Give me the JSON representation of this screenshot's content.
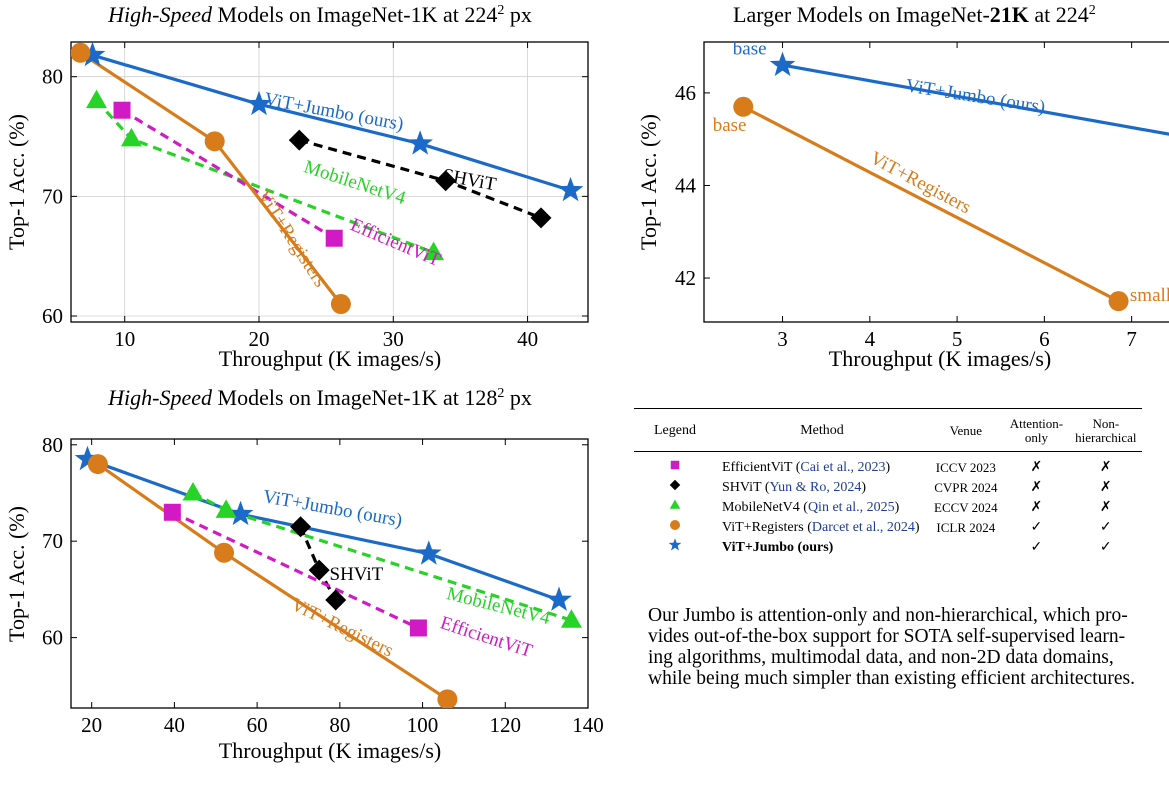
{
  "chart_data": [
    {
      "type": "line",
      "title_parts": [
        "High-Speed",
        " Models on ImageNet-1K at 224",
        "2",
        " px"
      ],
      "xlabel": "Throughput (K images/s)",
      "ylabel": "Top-1 Acc. (%)",
      "xlim": [
        6,
        44.5
      ],
      "ylim": [
        59.5,
        82.9
      ],
      "xticks": [
        10,
        20,
        30,
        40
      ],
      "yticks": [
        60,
        70,
        80
      ],
      "grid": true,
      "series": [
        {
          "name": "ViT+Jumbo (ours)",
          "color": "#1b6ac9",
          "marker": "star",
          "dash": false,
          "points": [
            [
              7.6,
              81.8
            ],
            [
              20.0,
              77.7
            ],
            [
              32.0,
              74.4
            ],
            [
              43.2,
              70.5
            ]
          ],
          "label": {
            "text": "ViT+Jumbo (ours)",
            "at": [
              25.5,
              76.6
            ],
            "angle": 10.5
          }
        },
        {
          "name": "SHViT",
          "color": "#000000",
          "marker": "diamond",
          "dash": true,
          "points": [
            [
              23.0,
              74.7
            ],
            [
              33.9,
              71.3
            ],
            [
              41.0,
              68.2
            ]
          ],
          "label": {
            "text": "SHViT",
            "at": [
              35.6,
              70.9
            ],
            "angle": 10.5
          }
        },
        {
          "name": "MobileNetV4",
          "color": "#27d327",
          "marker": "triangle",
          "dash": true,
          "points": [
            [
              7.9,
              78.0
            ],
            [
              10.5,
              74.8
            ],
            [
              33.0,
              65.3
            ]
          ],
          "label": {
            "text": "MobileNetV4",
            "at": [
              27.0,
              70.7
            ],
            "angle": 18
          }
        },
        {
          "name": "EfficientViT",
          "color": "#d119c5",
          "marker": "square",
          "dash": true,
          "points": [
            [
              9.8,
              77.2
            ],
            [
              25.6,
              66.5
            ]
          ],
          "label": {
            "text": "EfficientViT",
            "at": [
              30.0,
              65.7
            ],
            "angle": 23
          }
        },
        {
          "name": "ViT+Registers",
          "color": "#d87b1a",
          "marker": "circle",
          "dash": false,
          "points": [
            [
              6.7,
              82.0
            ],
            [
              16.7,
              74.6
            ],
            [
              26.1,
              61.0
            ]
          ],
          "label": {
            "text": "ViT+Registers",
            "at": [
              22.1,
              66.2
            ],
            "angle": 57
          }
        }
      ]
    },
    {
      "type": "line",
      "title_parts": [
        "Larger Models on ImageNet-",
        "21K",
        " at 224",
        "2"
      ],
      "xlabel": "Throughput (K images/s)",
      "ylabel": "Top-1 Acc. (%)",
      "xlim": [
        2.1,
        7.6
      ],
      "ylim": [
        41.05,
        47.1
      ],
      "xticks": [
        3,
        4,
        5,
        6,
        7
      ],
      "yticks": [
        42,
        44,
        46
      ],
      "grid": false,
      "series": [
        {
          "name": "ViT+Jumbo (ours)",
          "color": "#1b6ac9",
          "marker": "star",
          "dash": false,
          "points": [
            [
              3.0,
              46.6
            ],
            [
              7.75,
              45.0
            ]
          ],
          "label": {
            "text": "ViT+Jumbo (ours)",
            "at": [
              5.2,
              45.8
            ],
            "angle": 9
          }
        },
        {
          "name": "ViT+Registers",
          "color": "#d87b1a",
          "marker": "circle",
          "dash": false,
          "points": [
            [
              2.55,
              45.7
            ],
            [
              6.85,
              41.5
            ]
          ],
          "label": {
            "text": "ViT+Registers",
            "at": [
              4.55,
              43.95
            ],
            "angle": 28
          }
        }
      ],
      "point_labels": [
        {
          "text": "base",
          "color": "#1b6ac9",
          "at": [
            2.43,
            46.83
          ]
        },
        {
          "text": "base",
          "color": "#d87b1a",
          "at": [
            2.2,
            45.18
          ]
        },
        {
          "text": "small",
          "color": "#d87b1a",
          "at": [
            6.98,
            41.5
          ]
        }
      ]
    },
    {
      "type": "line",
      "title_parts": [
        "High-Speed",
        " Models on ImageNet-1K at 128",
        "2",
        " px"
      ],
      "xlabel": "Throughput (K images/s)",
      "ylabel": "Top-1 Acc. (%)",
      "xlim": [
        15,
        140
      ],
      "ylim": [
        52.7,
        80.6
      ],
      "xticks": [
        20,
        40,
        60,
        80,
        100,
        120,
        140
      ],
      "yticks": [
        60,
        70,
        80
      ],
      "grid": false,
      "series": [
        {
          "name": "ViT+Jumbo (ours)",
          "color": "#1b6ac9",
          "marker": "star",
          "dash": false,
          "points": [
            [
              19.0,
              78.5
            ],
            [
              56.0,
              72.8
            ],
            [
              101.5,
              68.7
            ],
            [
              133.0,
              63.9
            ]
          ],
          "label": {
            "text": "ViT+Jumbo (ours)",
            "at": [
              78.0,
              72.8
            ],
            "angle": 10
          }
        },
        {
          "name": "MobileNetV4",
          "color": "#27d327",
          "marker": "triangle",
          "dash": true,
          "points": [
            [
              44.5,
              75.0
            ],
            [
              52.5,
              73.2
            ],
            [
              136.0,
              61.8
            ]
          ],
          "label": {
            "text": "MobileNetV4",
            "at": [
              118.0,
              62.7
            ],
            "angle": 14
          }
        },
        {
          "name": "SHViT",
          "color": "#000000",
          "marker": "diamond",
          "dash": true,
          "points": [
            [
              70.5,
              71.5
            ],
            [
              75.0,
              67.0
            ],
            [
              79.0,
              63.9
            ]
          ],
          "label": {
            "text": "SHViT",
            "at": [
              84.0,
              66.0
            ],
            "angle": 0
          }
        },
        {
          "name": "EfficientViT",
          "color": "#d119c5",
          "marker": "square",
          "dash": true,
          "points": [
            [
              39.5,
              73.0
            ],
            [
              99.0,
              61.0
            ]
          ],
          "label": {
            "text": "EfficientViT",
            "at": [
              115.0,
              59.5
            ],
            "angle": 18
          }
        },
        {
          "name": "ViT+Registers",
          "color": "#d87b1a",
          "marker": "circle",
          "dash": false,
          "points": [
            [
              21.5,
              78.0
            ],
            [
              52.0,
              68.8
            ],
            [
              106.0,
              53.6
            ]
          ],
          "label": {
            "text": "ViT+Registers",
            "at": [
              80.0,
              60.5
            ],
            "angle": 26
          }
        }
      ]
    }
  ],
  "legend_table": {
    "headers": [
      "Legend",
      "Method",
      "Venue",
      "Attention-only",
      "Non-hierarchical"
    ],
    "rows": [
      {
        "symbol": "square",
        "color": "#d119c5",
        "method": "EfficientViT",
        "cite": "Cai et al., 2023",
        "venue": "ICCV 2023",
        "attention_only": "✗",
        "non_hier": "✗"
      },
      {
        "symbol": "diamond",
        "color": "#000000",
        "method": "SHViT",
        "cite": "Yun & Ro, 2024",
        "venue": "CVPR 2024",
        "attention_only": "✗",
        "non_hier": "✗"
      },
      {
        "symbol": "triangle",
        "color": "#27d327",
        "method": "MobileNetV4",
        "cite": "Qin et al., 2025",
        "venue": "ECCV 2024",
        "attention_only": "✗",
        "non_hier": "✗"
      },
      {
        "symbol": "circle",
        "color": "#d87b1a",
        "method": "ViT+Registers",
        "cite": "Darcet et al., 2024",
        "venue": "ICLR 2024",
        "attention_only": "✓",
        "non_hier": "✓"
      },
      {
        "symbol": "star",
        "color": "#1b6ac9",
        "method": "ViT+Jumbo (ours)",
        "cite": "",
        "venue": "",
        "attention_only": "✓",
        "non_hier": "✓"
      }
    ]
  },
  "caption": [
    "Our Jumbo is attention-only and non-hierarchical, which pro-",
    "vides out-of-the-box support for SOTA self-supervised learn-",
    "ing algorithms, multimodal data, and non-2D data domains,",
    "while being much simpler than existing efficient architectures."
  ]
}
